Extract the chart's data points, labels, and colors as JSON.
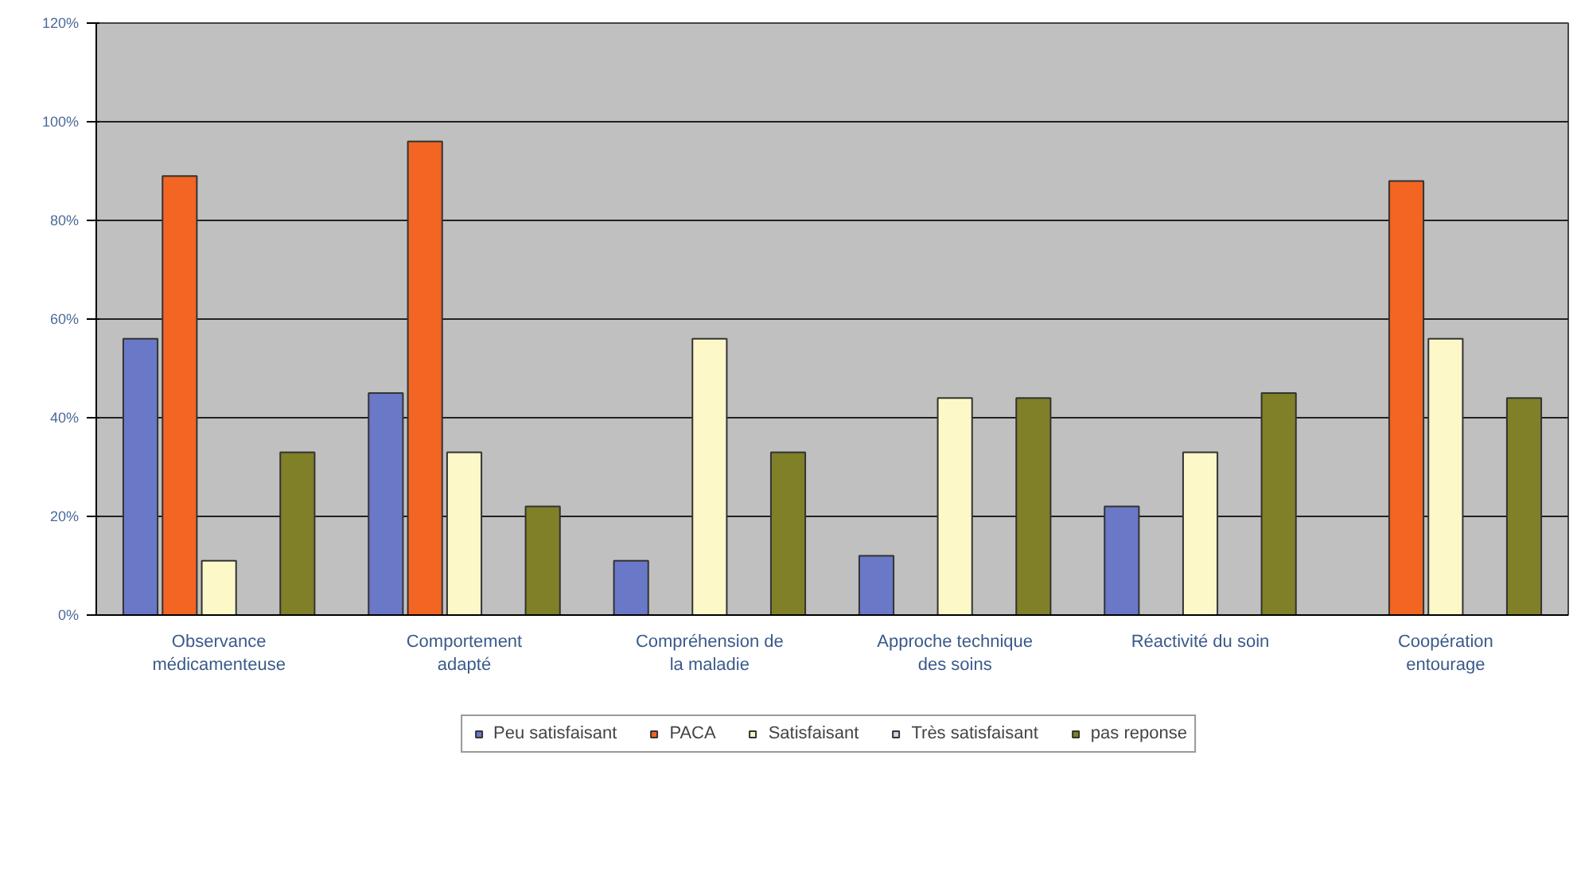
{
  "chart_data": {
    "type": "bar",
    "categories": [
      "Observance médicamenteuse",
      "Comportement adapté",
      "Compréhension de la maladie",
      "Approche technique des soins",
      "Réactivité du soin",
      "Coopération entourage"
    ],
    "series": [
      {
        "name": "Peu satisfaisant",
        "color": "#6a78c8",
        "values": [
          56,
          45,
          11,
          12,
          22,
          null
        ]
      },
      {
        "name": "PACA",
        "color": "#f26522",
        "values": [
          89,
          96,
          null,
          null,
          null,
          88
        ]
      },
      {
        "name": "Satisfaisant",
        "color": "#fcf8c8",
        "values": [
          11,
          33,
          56,
          44,
          33,
          56
        ]
      },
      {
        "name": "Très satisfaisant",
        "color": "#c8d8e8",
        "values": [
          null,
          null,
          null,
          null,
          null,
          null
        ]
      },
      {
        "name": "pas reponse",
        "color": "#7f8028",
        "values": [
          33,
          22,
          33,
          44,
          45,
          44
        ]
      }
    ],
    "ylim": [
      0,
      120
    ],
    "yticks": [
      {
        "value": 0,
        "label": "0%"
      },
      {
        "value": 20,
        "label": "20%"
      },
      {
        "value": 40,
        "label": "40%"
      },
      {
        "value": 60,
        "label": "60%"
      },
      {
        "value": 80,
        "label": "80%"
      },
      {
        "value": 100,
        "label": "100%"
      },
      {
        "value": 120,
        "label": "120%"
      }
    ],
    "grid": "y",
    "legend": "bottom"
  }
}
